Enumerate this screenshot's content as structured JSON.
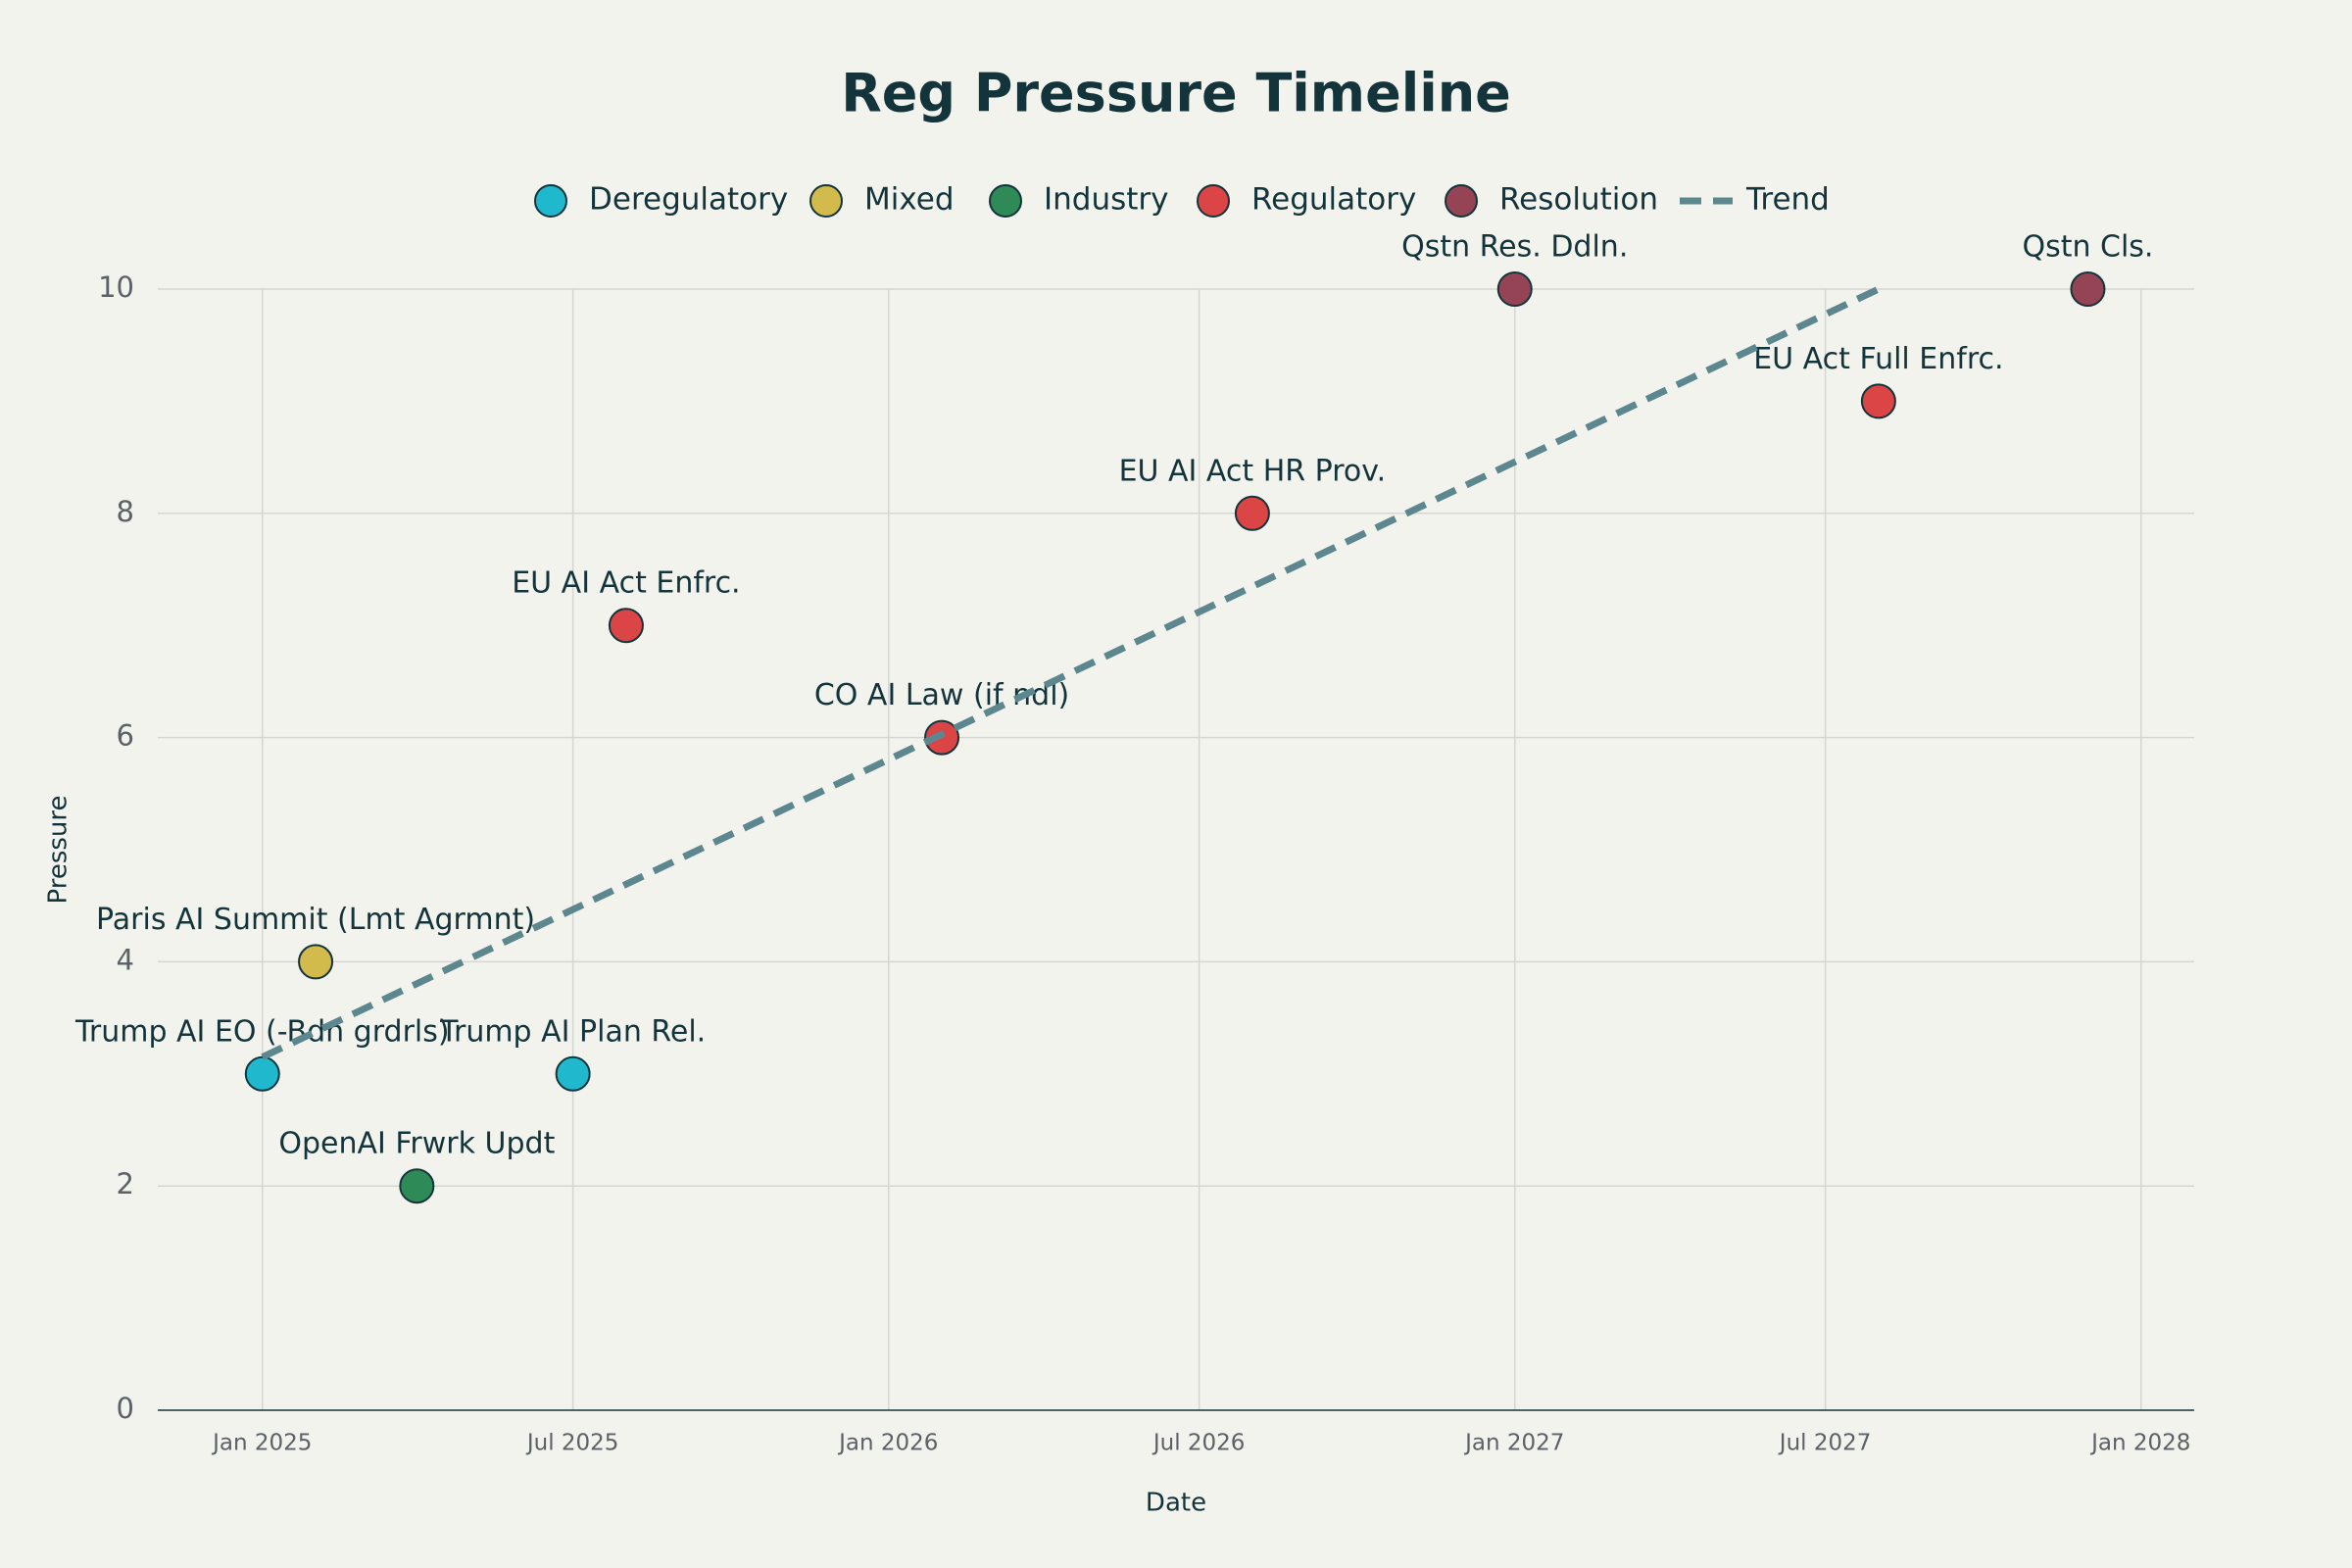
{
  "chart_data": {
    "type": "scatter",
    "title": "Reg Pressure Timeline",
    "x_label": "Date",
    "y_label": "Pressure",
    "xlim": [
      "2024-11",
      "2028-02"
    ],
    "xticks": [
      {
        "value": "2025-01",
        "label": "Jan 2025"
      },
      {
        "value": "2025-07",
        "label": "Jul 2025"
      },
      {
        "value": "2026-01",
        "label": "Jan 2026"
      },
      {
        "value": "2026-07",
        "label": "Jul 2026"
      },
      {
        "value": "2027-01",
        "label": "Jan 2027"
      },
      {
        "value": "2027-07",
        "label": "Jul 2027"
      },
      {
        "value": "2028-01",
        "label": "Jan 2028"
      }
    ],
    "ylim": [
      0,
      10
    ],
    "yticks": [
      0,
      2,
      4,
      6,
      8,
      10
    ],
    "grid": true,
    "series": [
      {
        "name": "Deregulatory",
        "color": "#1fb8cd",
        "x": [
          "2025-01",
          "2025-07"
        ],
        "values": [
          3,
          3
        ],
        "labels": [
          "Trump AI EO (-Bdn grdrls)",
          "Trump AI Plan Rel."
        ]
      },
      {
        "name": "Mixed",
        "color": "#d2ba4c",
        "x": [
          "2025-02"
        ],
        "values": [
          4
        ],
        "labels": [
          "Paris AI Summit (Lmt Agrmnt)"
        ]
      },
      {
        "name": "Industry",
        "color": "#2e8b57",
        "x": [
          "2025-04"
        ],
        "values": [
          2
        ],
        "labels": [
          "OpenAI Frwrk Updt"
        ]
      },
      {
        "name": "Regulatory",
        "color": "#db4545",
        "x": [
          "2025-08",
          "2026-02",
          "2026-08",
          "2027-08"
        ],
        "values": [
          7,
          6,
          8,
          9
        ],
        "labels": [
          "EU AI Act Enfrc.",
          "CO AI Law (if ndl)",
          "EU AI Act HR Prov.",
          "EU Act Full Enfrc."
        ]
      },
      {
        "name": "Resolution",
        "color": "#944454",
        "x": [
          "2027-01",
          "2027-12"
        ],
        "values": [
          10,
          10
        ],
        "labels": [
          "Qstn Res. Ddln.",
          "Qstn Cls."
        ]
      },
      {
        "name": "Trend",
        "color": "#5d878f",
        "style": "dashed",
        "x": [
          "2025-01",
          "2027-08"
        ],
        "values": [
          3.15,
          10
        ]
      }
    ]
  }
}
